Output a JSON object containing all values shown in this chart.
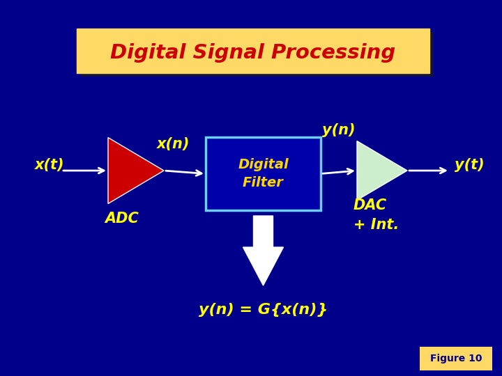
{
  "bg_color": "#00008B",
  "title_text": "Digital Signal Processing",
  "title_bg": "#FFD966",
  "title_fg": "#CC0000",
  "title_shadow": "#1a1a1a",
  "filter_box_color": "#0000AA",
  "filter_box_edge": "#6ECFFF",
  "filter_text": "Digital\nFilter",
  "filter_text_color": "#FFD700",
  "adc_color": "#CC0000",
  "dac_color": "#CCEECC",
  "arrow_color": "#FFFFFF",
  "label_color": "#FFFF00",
  "xt_label": "x(t)",
  "xn_label": "x(n)",
  "yn_label": "y(n)",
  "yt_label": "y(t)",
  "adc_label": "ADC",
  "dac_label": "DAC\n+ Int.",
  "equation": "y(n) = G{x(n)}",
  "figure_label": "Figure 10",
  "figure_label_bg": "#FFD966",
  "figure_label_fg": "#00008B",
  "curve_color1": "#2255CC",
  "curve_color2": "#4477EE",
  "curve_color3": "#AACCFF"
}
